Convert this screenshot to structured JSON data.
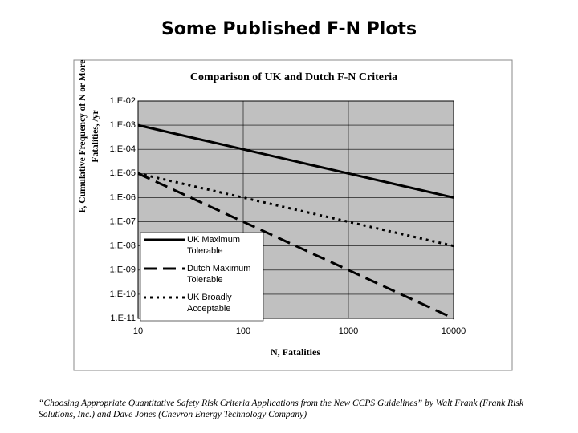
{
  "title": "Some Published F-N Plots",
  "chart_data": {
    "type": "line",
    "title": "Comparison of UK and Dutch F-N Criteria",
    "x_label": "N, Fatalities",
    "y_label": "F, Cumulative Frequency of N or More Fatalities, /yr",
    "x": [
      10,
      100,
      1000,
      10000
    ],
    "series": [
      {
        "name": "UK Maximum Tolerable",
        "color": "#000000",
        "dash": "solid",
        "values": [
          0.001,
          0.0001,
          1e-05,
          1e-06
        ]
      },
      {
        "name": "Dutch Maximum Tolerable",
        "color": "#000000",
        "dash": "dashed",
        "values": [
          1e-05,
          1e-07,
          1e-09,
          1e-11
        ]
      },
      {
        "name": "UK Broadly Acceptable",
        "color": "#000000",
        "dash": "dotted",
        "values": [
          1e-05,
          1e-06,
          1e-07,
          1e-08
        ]
      }
    ],
    "xlim": [
      10,
      10000
    ],
    "xticks": [
      10,
      100,
      1000,
      10000
    ],
    "xlog": true,
    "ylim": [
      1e-11,
      0.01
    ],
    "ylog": true,
    "yticks": [
      {
        "value": 0.01,
        "label": "1.E-02"
      },
      {
        "value": 0.001,
        "label": "1.E-03"
      },
      {
        "value": 0.0001,
        "label": "1.E-04"
      },
      {
        "value": 1e-05,
        "label": "1.E-05"
      },
      {
        "value": 1e-06,
        "label": "1.E-06"
      },
      {
        "value": 1e-07,
        "label": "1.E-07"
      },
      {
        "value": 1e-08,
        "label": "1.E-08"
      },
      {
        "value": 1e-09,
        "label": "1.E-09"
      },
      {
        "value": 1e-10,
        "label": "1.E-10"
      },
      {
        "value": 1e-11,
        "label": "1.E-11"
      }
    ],
    "grid": true,
    "plot_background": "#c0c0c0",
    "legend": "lower left"
  },
  "footnote": "“Choosing Appropriate Quantitative Safety Risk Criteria Applications from the New CCPS Guidelines” by Walt Frank (Frank Risk Solutions, Inc.) and Dave Jones (Chevron Energy Technology Company)"
}
